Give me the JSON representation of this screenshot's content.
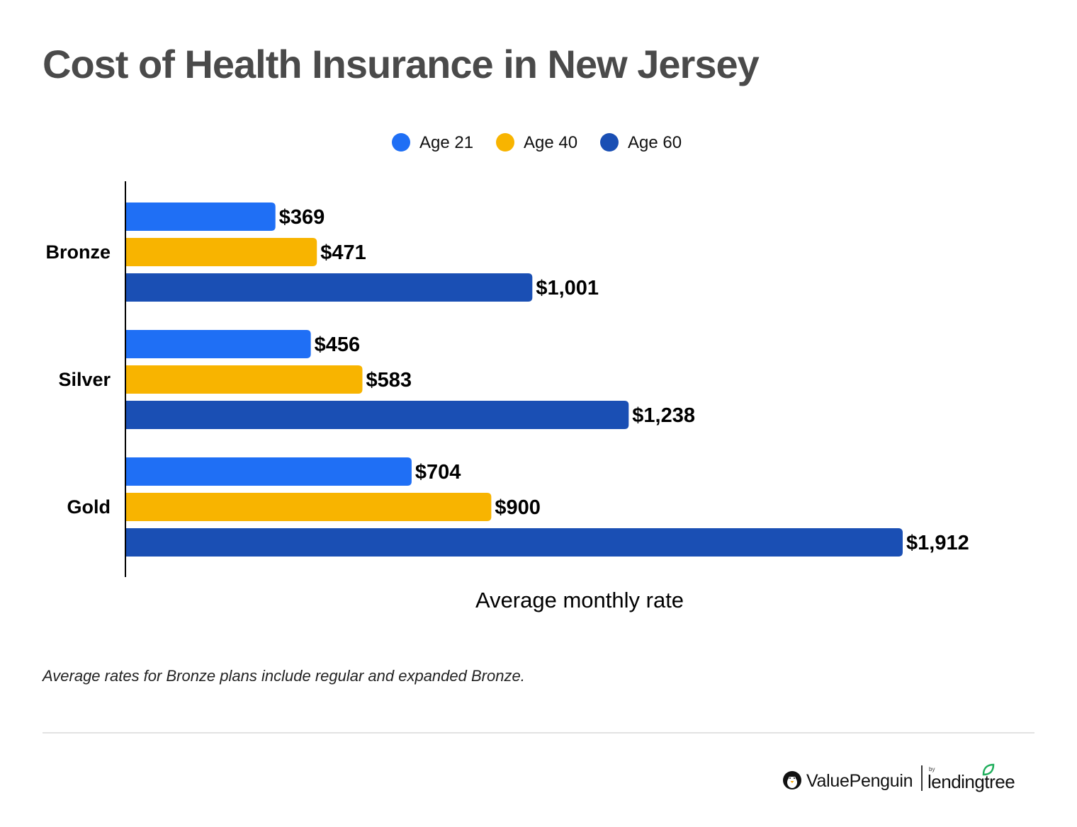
{
  "chart_data": {
    "type": "bar",
    "orientation": "horizontal",
    "title": "Cost of Health Insurance in New Jersey",
    "categories": [
      "Bronze",
      "Silver",
      "Gold"
    ],
    "series": [
      {
        "name": "Age 21",
        "color": "#1f6ff5",
        "values": [
          369,
          456,
          704
        ],
        "labels": [
          "$369",
          "$456",
          "$704"
        ]
      },
      {
        "name": "Age 40",
        "color": "#f8b400",
        "values": [
          471,
          583,
          900
        ],
        "labels": [
          "$471",
          "$583",
          "$900"
        ]
      },
      {
        "name": "Age 60",
        "color": "#1a4fb4",
        "values": [
          1001,
          1238,
          1912
        ],
        "labels": [
          "$1,001",
          "$1,238",
          "$1,912"
        ]
      }
    ],
    "xlabel": "Average monthly rate",
    "ylabel": "",
    "xlim": [
      0,
      2000
    ],
    "legend_position": "top-center",
    "grid": false
  },
  "note": "Average rates for Bronze plans include regular and expanded Bronze.",
  "branding": {
    "valuepenguin": "ValuePenguin",
    "by": "by",
    "lendingtree": "lendingtree"
  }
}
